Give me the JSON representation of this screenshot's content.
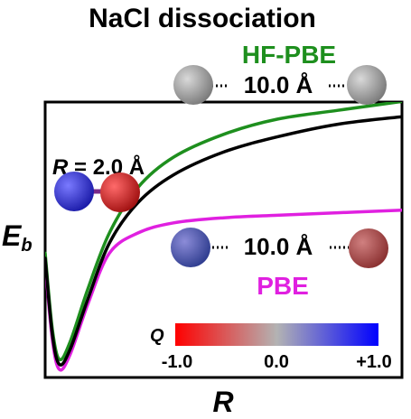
{
  "chart_data": {
    "type": "line",
    "title": "NaCl dissociation",
    "xlabel": "R",
    "ylabel_main": "E",
    "ylabel_sub": "b",
    "series": [
      {
        "name": "HF-PBE",
        "color": "#1e8f1e",
        "points": [
          [
            0,
            0.58
          ],
          [
            0.02,
            0.88
          ],
          [
            0.04,
            1.0
          ],
          [
            0.07,
            0.93
          ],
          [
            0.12,
            0.72
          ],
          [
            0.18,
            0.5
          ],
          [
            0.26,
            0.32
          ],
          [
            0.36,
            0.2
          ],
          [
            0.5,
            0.11
          ],
          [
            0.65,
            0.05
          ],
          [
            0.82,
            0.015
          ],
          [
            1.0,
            -0.02
          ]
        ]
      },
      {
        "name": "",
        "color": "#000000",
        "points": [
          [
            0,
            0.6
          ],
          [
            0.02,
            0.9
          ],
          [
            0.04,
            1.02
          ],
          [
            0.07,
            0.96
          ],
          [
            0.12,
            0.76
          ],
          [
            0.18,
            0.54
          ],
          [
            0.26,
            0.38
          ],
          [
            0.36,
            0.27
          ],
          [
            0.5,
            0.18
          ],
          [
            0.65,
            0.12
          ],
          [
            0.82,
            0.07
          ],
          [
            1.0,
            0.04
          ]
        ]
      },
      {
        "name": "PBE",
        "color": "#e020e0",
        "points": [
          [
            0,
            0.62
          ],
          [
            0.02,
            0.92
          ],
          [
            0.04,
            1.04
          ],
          [
            0.07,
            0.98
          ],
          [
            0.12,
            0.78
          ],
          [
            0.18,
            0.58
          ],
          [
            0.26,
            0.5
          ],
          [
            0.36,
            0.46
          ],
          [
            0.5,
            0.44
          ],
          [
            0.65,
            0.43
          ],
          [
            0.82,
            0.42
          ],
          [
            1.0,
            0.41
          ]
        ]
      }
    ],
    "legend": [
      "HF-PBE",
      "PBE"
    ],
    "annotations": {
      "r_short_label": "R",
      "r_short_value": " = 2.0 Å",
      "distance_top": "10.0 Å",
      "distance_bottom": "10.0 Å"
    },
    "colorbar": {
      "label": "Q",
      "min_label": "-1.0",
      "mid_label": "0.0",
      "max_label": "+1.0",
      "colors": [
        "#ff0000",
        "#b3b3b3",
        "#0000ff"
      ]
    },
    "grid": false
  }
}
